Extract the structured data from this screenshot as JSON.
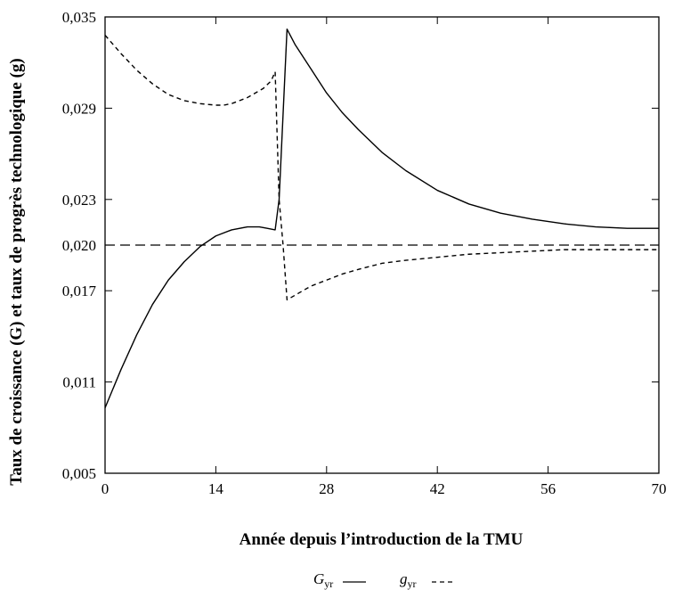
{
  "chart_data": {
    "type": "line",
    "title": "",
    "xlabel": "Année depuis l’introduction de la TMU",
    "ylabel": "Taux de croissance (G) et taux de progrès technologique (g)",
    "xlim": [
      0,
      70
    ],
    "ylim": [
      0.005,
      0.035
    ],
    "x_ticks": [
      0,
      14,
      28,
      42,
      56,
      70
    ],
    "x_tick_labels": [
      "0",
      "14",
      "28",
      "42",
      "56",
      "70"
    ],
    "y_ticks": [
      0.005,
      0.011,
      0.017,
      0.02,
      0.023,
      0.029,
      0.035
    ],
    "y_tick_labels": [
      "0,005",
      "0,011",
      "0,017",
      "0,020",
      "0,023",
      "0,029",
      "0,035"
    ],
    "grid": false,
    "legend": {
      "placement": "bottom-center",
      "entries": [
        {
          "main": "G",
          "sub": "yr",
          "style": "solid"
        },
        {
          "main": "g",
          "sub": "yr",
          "style": "dashed"
        }
      ]
    },
    "reference_line": {
      "y": 0.02,
      "style": "long-dash"
    },
    "series": [
      {
        "legend_index": 0,
        "style": "solid",
        "x": [
          0,
          2,
          4,
          6,
          8,
          10,
          12,
          14,
          16,
          18,
          19.5,
          20.5,
          21.5,
          22,
          23,
          24,
          26,
          28,
          30,
          32,
          35,
          38,
          42,
          46,
          50,
          54,
          58,
          62,
          66,
          70
        ],
        "y": [
          0.0093,
          0.0118,
          0.0141,
          0.0161,
          0.0177,
          0.0189,
          0.0199,
          0.0206,
          0.021,
          0.0212,
          0.0212,
          0.0211,
          0.021,
          0.023,
          0.0342,
          0.0332,
          0.0316,
          0.03,
          0.0287,
          0.0276,
          0.0261,
          0.0249,
          0.0236,
          0.0227,
          0.0221,
          0.0217,
          0.0214,
          0.0212,
          0.0211,
          0.0211
        ]
      },
      {
        "legend_index": 1,
        "style": "dashed",
        "x": [
          0,
          2,
          4,
          6,
          8,
          10,
          12,
          14,
          15,
          16,
          18,
          20,
          21,
          21.5,
          22,
          22.5,
          23,
          24,
          26,
          28,
          30,
          32,
          35,
          38,
          42,
          46,
          50,
          54,
          58,
          62,
          66,
          70
        ],
        "y": [
          0.0338,
          0.0326,
          0.0315,
          0.0306,
          0.0299,
          0.0295,
          0.0293,
          0.0292,
          0.0292,
          0.0293,
          0.0297,
          0.0303,
          0.0308,
          0.0314,
          0.023,
          0.02,
          0.0164,
          0.0167,
          0.0173,
          0.0177,
          0.0181,
          0.0184,
          0.0188,
          0.019,
          0.0192,
          0.0194,
          0.0195,
          0.0196,
          0.0197,
          0.0197,
          0.0197,
          0.0197
        ]
      }
    ]
  }
}
